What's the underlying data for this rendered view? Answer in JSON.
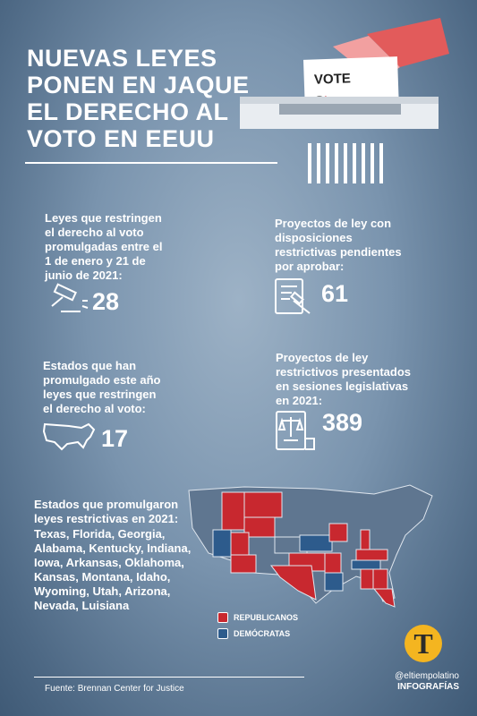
{
  "header": {
    "title_lines": [
      "NUEVAS LEYES",
      "PONEN EN JAQUE",
      "EL DERECHO AL",
      "VOTO EN EEUU"
    ],
    "ballot_text": "VOTE"
  },
  "stats": [
    {
      "label_lines": [
        "Leyes que restringen",
        "el derecho al voto",
        "promulgadas entre el",
        "1 de enero y 21 de",
        "junio de 2021:"
      ],
      "number": "28"
    },
    {
      "label_lines": [
        "Proyectos de ley con",
        "disposiciones",
        "restrictivas pendientes",
        "por aprobar:"
      ],
      "number": "61"
    },
    {
      "label_lines": [
        "Estados que han",
        "promulgado este año",
        "leyes que restringen",
        "el derecho al voto:"
      ],
      "number": "17"
    },
    {
      "label_lines": [
        "Proyectos de ley",
        "restrictivos presentados",
        "en sesiones legislativas",
        "en 2021:"
      ],
      "number": "389"
    }
  ],
  "states": {
    "heading_lines": [
      "Estados que promulgaron",
      "leyes restrictivas en 2021:"
    ],
    "list_lines": [
      "Texas, Florida, Georgia,",
      "Alabama, Kentucky, Indiana,",
      "Iowa, Arkansas, Oklahoma,",
      "Kansas, Montana, Idaho,",
      "Wyoming, Utah, Arizona,",
      "Nevada, Luisiana"
    ]
  },
  "legend": [
    {
      "label": "REPUBLICANOS",
      "color": "#c8282f"
    },
    {
      "label": "DEMÓCRATAS",
      "color": "#2d5b8c"
    }
  ],
  "footer": {
    "source": "Fuente: Brennan Center for Justice",
    "logo_letter": "T",
    "handle": "@eltiempolatino",
    "section": "INFOGRAFÍAS"
  }
}
